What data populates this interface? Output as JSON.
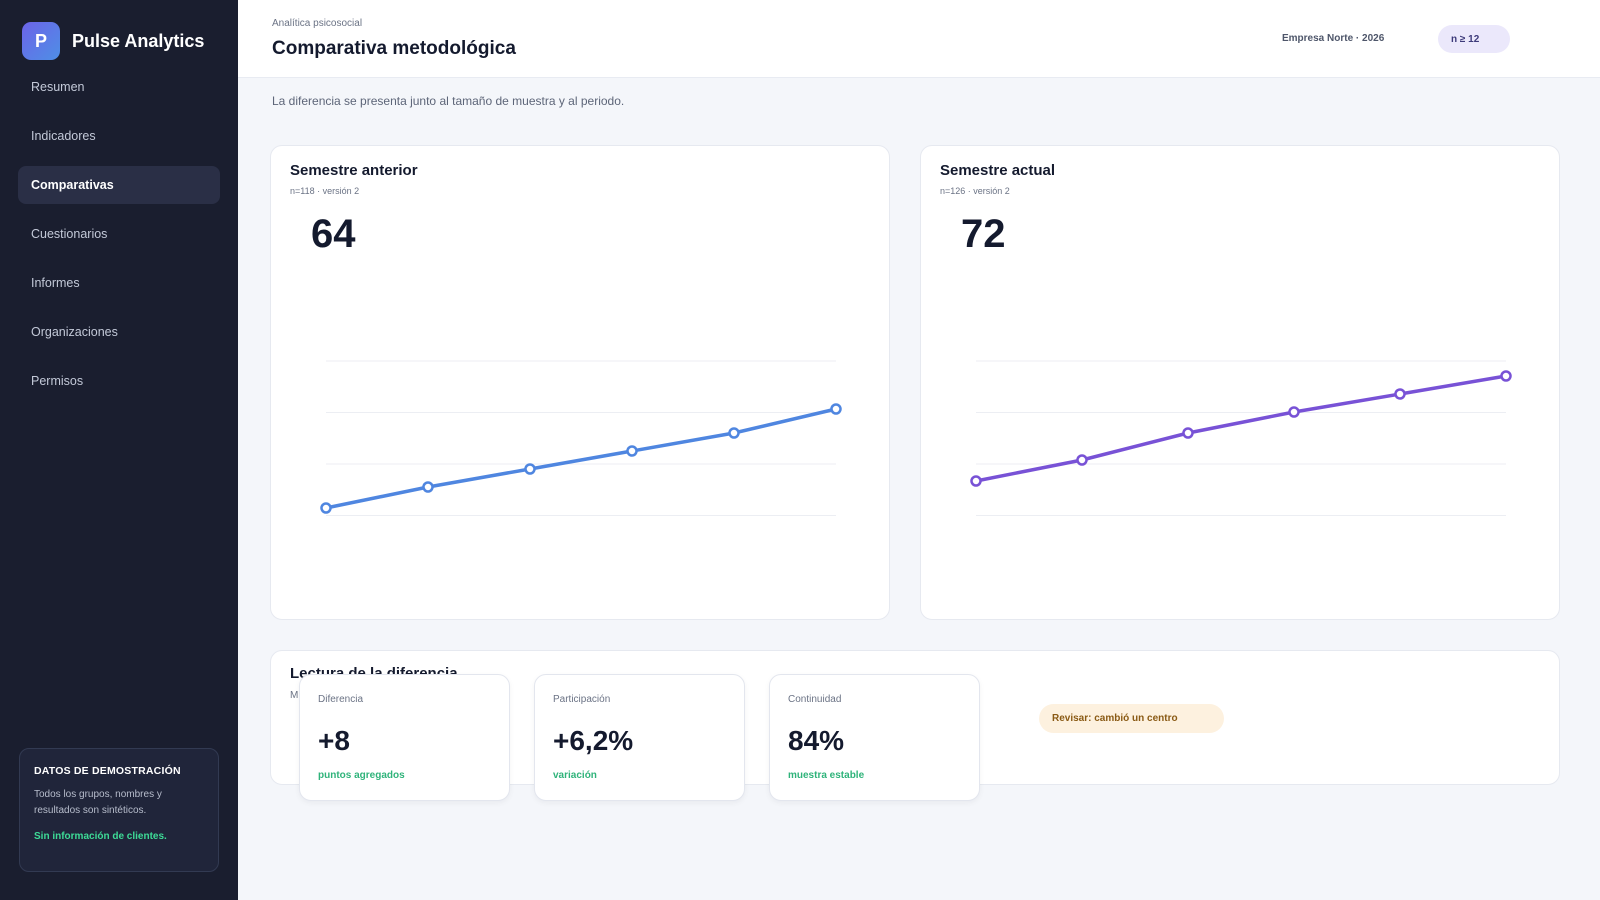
{
  "brand": {
    "logo_letter": "P",
    "name": "Pulse Analytics"
  },
  "sidebar": {
    "items": [
      {
        "label": "Resumen",
        "active": false
      },
      {
        "label": "Indicadores",
        "active": false
      },
      {
        "label": "Comparativas",
        "active": true
      },
      {
        "label": "Cuestionarios",
        "active": false
      },
      {
        "label": "Informes",
        "active": false
      },
      {
        "label": "Organizaciones",
        "active": false
      },
      {
        "label": "Permisos",
        "active": false
      }
    ],
    "demo": {
      "title": "DATOS DE DEMOSTRACIÓN",
      "text": "Todos los grupos, nombres y resultados son sintéticos.",
      "link": "Sin información de clientes."
    }
  },
  "header": {
    "eyebrow": "Analítica psicosocial",
    "title": "Comparativa metodológica",
    "org": "Empresa Norte · 2026",
    "badge": "n ≥ 12"
  },
  "intro": "La diferencia se presenta junto al tamaño de muestra y al periodo.",
  "cards": [
    {
      "title": "Semestre anterior",
      "meta": "n=118 · versión 2",
      "value": "64",
      "color": "#4f86e0"
    },
    {
      "title": "Semestre actual",
      "meta": "n=126 · versión 2",
      "value": "72",
      "color": "#7852d6"
    }
  ],
  "chart_data": [
    {
      "type": "line",
      "title": "Semestre anterior",
      "x": [
        1,
        2,
        3,
        4,
        5,
        6
      ],
      "values": [
        51,
        58,
        64,
        70,
        76,
        84
      ],
      "ylim": [
        0,
        100
      ],
      "grid": true
    },
    {
      "type": "line",
      "title": "Semestre actual",
      "x": [
        1,
        2,
        3,
        4,
        5,
        6
      ],
      "values": [
        60,
        67,
        76,
        83,
        89,
        95
      ],
      "ylim": [
        0,
        100
      ],
      "grid": true
    }
  ],
  "reading": {
    "title": "Lectura de la diferencia",
    "subtitle": "M",
    "kpis": [
      {
        "label": "Diferencia",
        "value": "+8",
        "note": "puntos agregados"
      },
      {
        "label": "Participación",
        "value": "+6,2%",
        "note": "variación"
      },
      {
        "label": "Continuidad",
        "value": "84%",
        "note": "muestra estable"
      }
    ],
    "warning": "Revisar: cambió un centro"
  }
}
